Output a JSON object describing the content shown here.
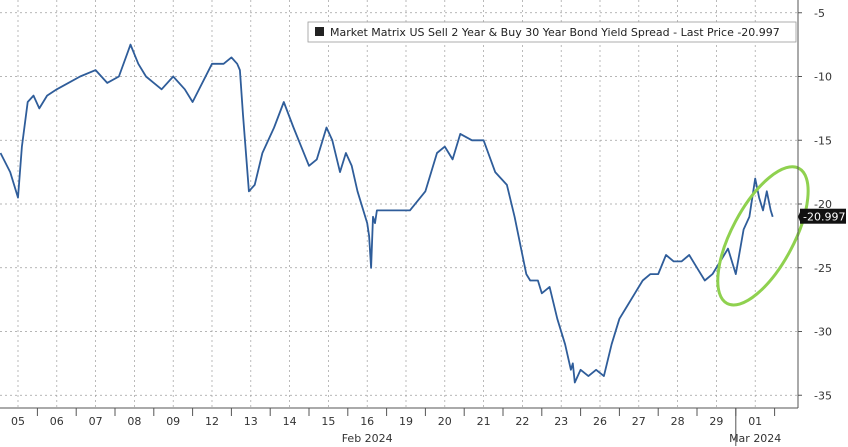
{
  "chart_data": {
    "type": "line",
    "legend": {
      "text": "Market Matrix US Sell 2 Year & Buy 30 Year Bond Yield Spread - Last Price -20.997",
      "placement": "top-right"
    },
    "last_price": -20.997,
    "last_price_label": "-20.997",
    "ylim": [
      -36,
      -4
    ],
    "y_ticks": [
      -5,
      -10,
      -15,
      -20,
      -25,
      -30,
      -35
    ],
    "y_tick_labels": [
      "-5",
      "-10",
      "-15",
      "-20",
      "-25",
      "-30",
      "-35"
    ],
    "x_categories": [
      "05",
      "06",
      "07",
      "08",
      "09",
      "12",
      "13",
      "14",
      "15",
      "16",
      "19",
      "20",
      "21",
      "22",
      "23",
      "26",
      "27",
      "28",
      "29",
      "01"
    ],
    "x_group_labels": [
      {
        "text": "Feb 2024",
        "index": 9
      },
      {
        "text": "Mar 2024",
        "index": 19
      }
    ],
    "grid": true,
    "series": [
      {
        "color": "#2f5d9a",
        "x": [
          -0.45,
          -0.2,
          0,
          0.1,
          0.25,
          0.4,
          0.55,
          0.75,
          1.0,
          1.3,
          1.6,
          2.0,
          2.3,
          2.6,
          2.9,
          3.1,
          3.3,
          3.5,
          3.7,
          4.0,
          4.3,
          4.5,
          5.0,
          5.3,
          5.5,
          5.65,
          5.72,
          5.8,
          5.95,
          6.1,
          6.3,
          6.6,
          6.85,
          7.1,
          7.3,
          7.5,
          7.7,
          7.95,
          8.1,
          8.3,
          8.45,
          8.6,
          8.75,
          9.0,
          9.05,
          9.1,
          9.15,
          9.2,
          9.25,
          9.3,
          9.4,
          9.6,
          10.1,
          10.5,
          10.65,
          10.8,
          11.0,
          11.2,
          11.4,
          11.7,
          12.0,
          12.3,
          12.6,
          12.8,
          13.0,
          13.1,
          13.2,
          13.4,
          13.5,
          13.7,
          13.9,
          14.1,
          14.25,
          14.3,
          14.35,
          14.5,
          14.7,
          14.9,
          15.1,
          15.3,
          15.5,
          15.7,
          15.9,
          16.1,
          16.3,
          16.5,
          16.7,
          16.9,
          17.1,
          17.3,
          17.5,
          17.7,
          17.9,
          18.1,
          18.3,
          18.5,
          18.7,
          18.85,
          19.0,
          19.1,
          19.2,
          19.3,
          19.4,
          19.45
        ],
        "y": [
          -16,
          -17.5,
          -19.5,
          -15.5,
          -12,
          -11.5,
          -12.5,
          -11.5,
          -11,
          -10.5,
          -10,
          -9.5,
          -10.5,
          -10,
          -7.5,
          -9,
          -10,
          -10.5,
          -11,
          -10,
          -11,
          -12,
          -9,
          -9,
          -8.5,
          -9,
          -9.5,
          -13,
          -19,
          -18.5,
          -16,
          -14,
          -12,
          -14,
          -15.5,
          -17,
          -16.5,
          -14,
          -15,
          -17.5,
          -16,
          -17,
          -19,
          -21.5,
          -22.5,
          -25,
          -21,
          -21.5,
          -20.5,
          -20.5,
          -20.5,
          -20.5,
          -20.5,
          -19,
          -17.5,
          -16,
          -15.5,
          -16.5,
          -14.5,
          -15,
          -15,
          -17.5,
          -18.5,
          -21,
          -24,
          -25.5,
          -26,
          -26,
          -27,
          -26.5,
          -29,
          -31,
          -33,
          -32.5,
          -34,
          -33,
          -33.5,
          -33,
          -33.5,
          -31,
          -29,
          -28,
          -27,
          -26,
          -25.5,
          -25.5,
          -24,
          -24.5,
          -24.5,
          -24,
          -25,
          -26,
          -25.5,
          -24.5,
          -23.5,
          -25.5,
          -22,
          -21,
          -18,
          -19.5,
          -20.5,
          -19,
          -20.5,
          -21
        ]
      }
    ],
    "annotations": [
      {
        "type": "ellipse",
        "color": "#8fd14f",
        "x_range": [
          18.4,
          20.0
        ],
        "y_range": [
          -28.5,
          -16.5
        ]
      }
    ]
  }
}
